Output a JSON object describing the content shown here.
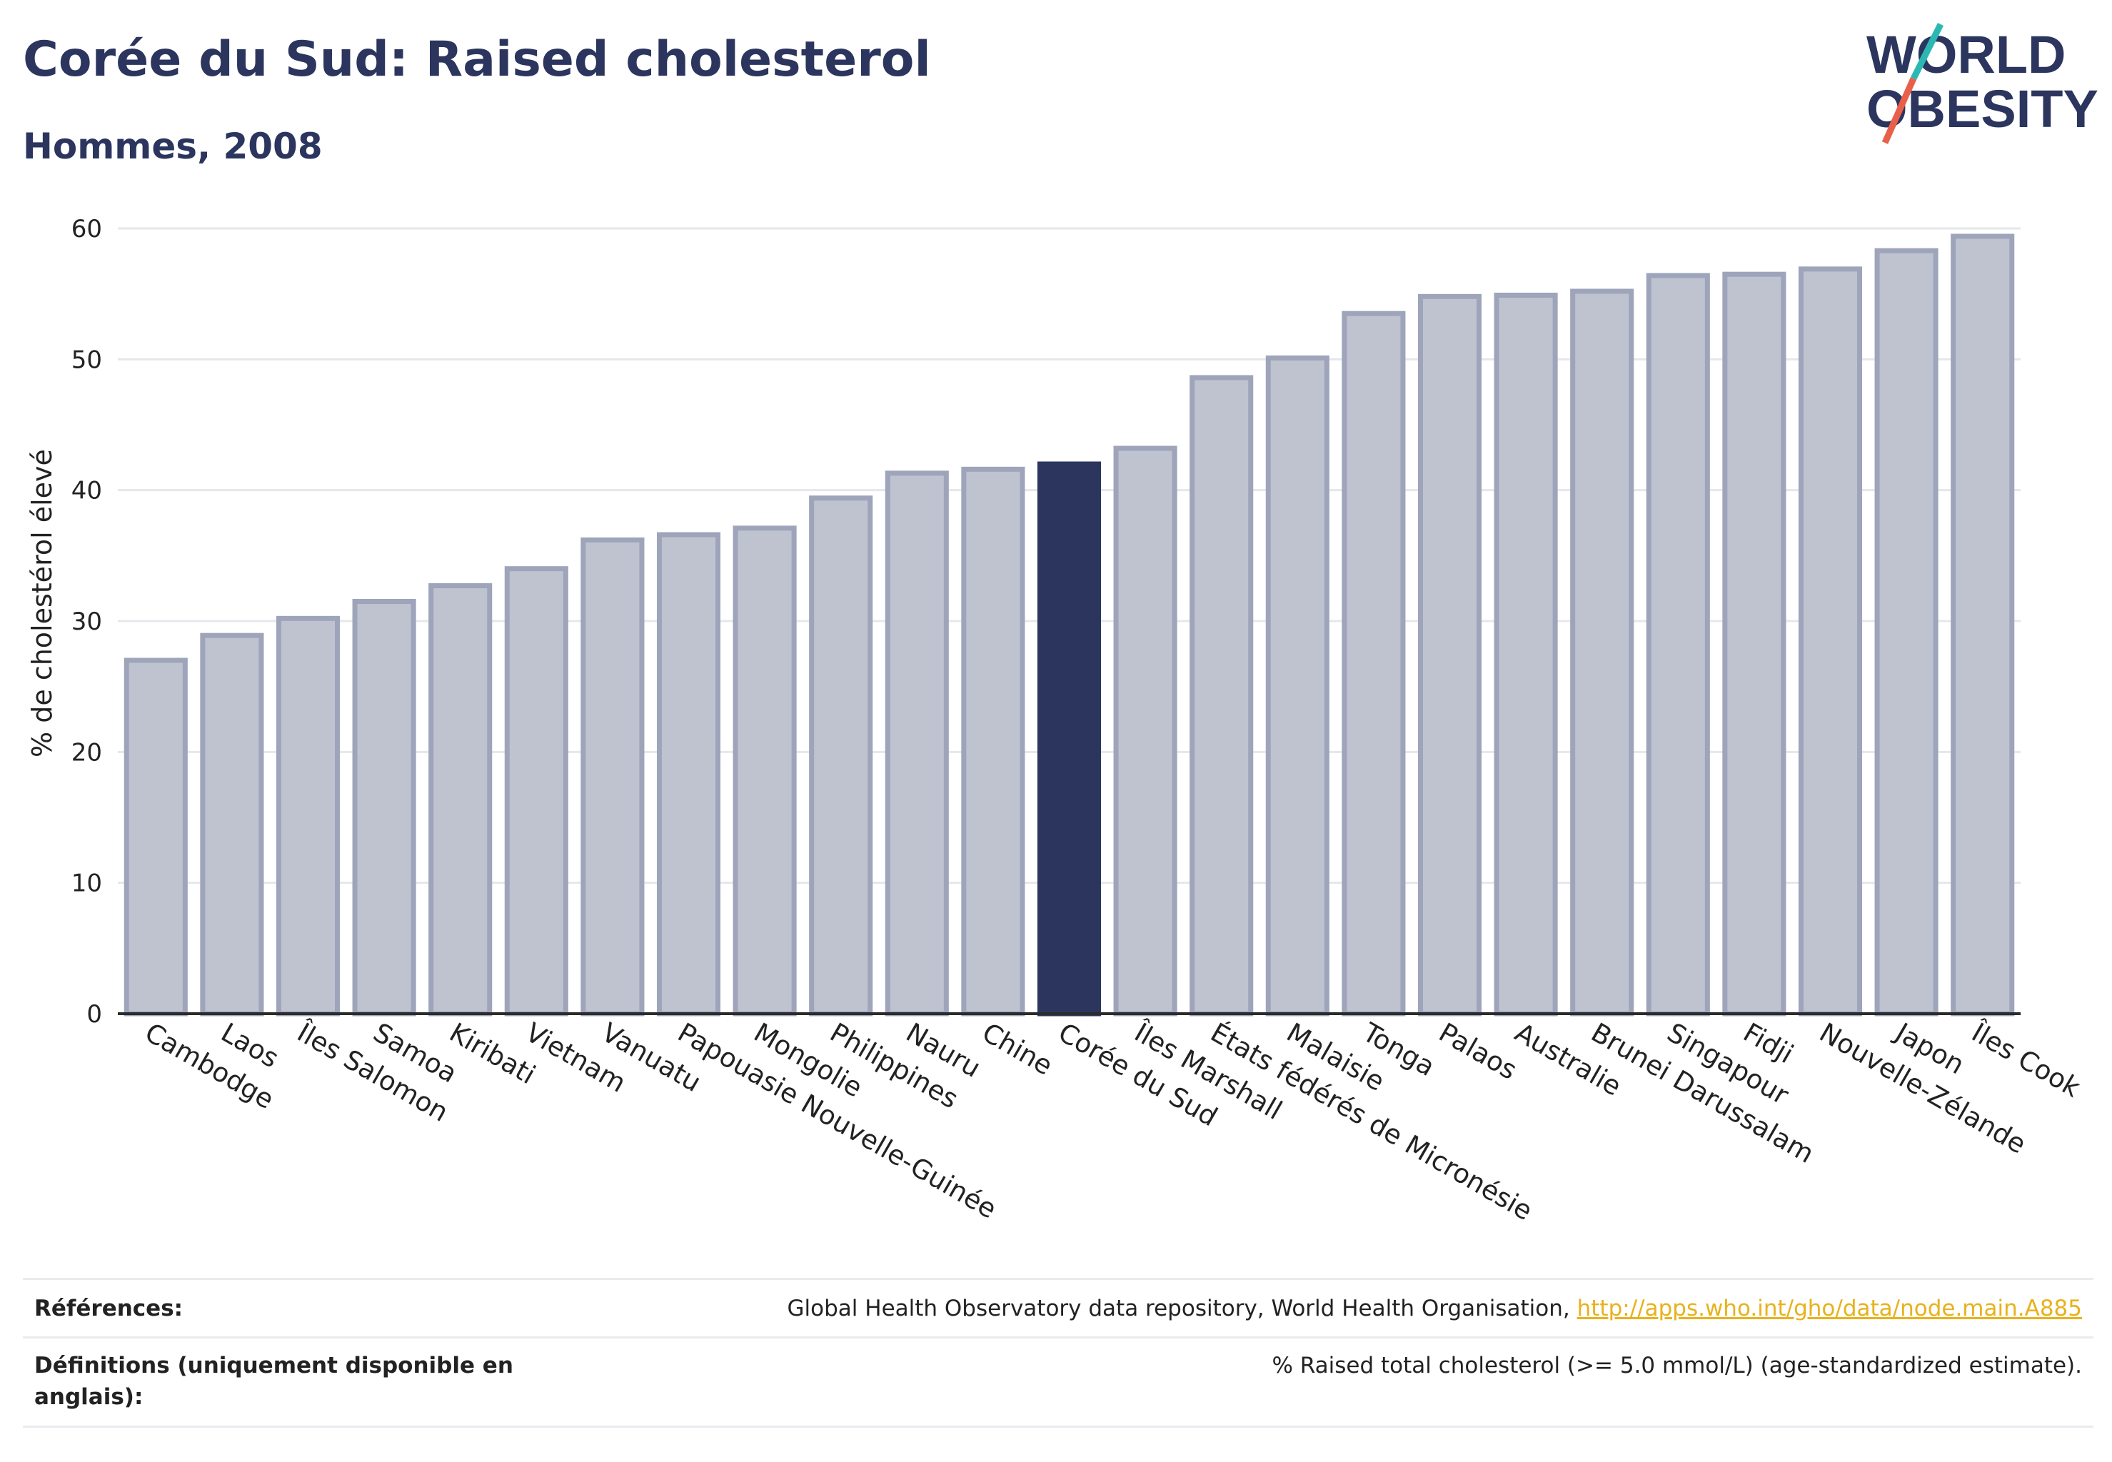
{
  "header": {
    "title": "Corée du Sud: Raised cholesterol",
    "subtitle": "Hommes, 2008"
  },
  "logo": {
    "line1": "WORLD",
    "line2": "OBESITY"
  },
  "chart_data": {
    "type": "bar",
    "ylabel": "% de cholestérol élevé",
    "xlabel": "",
    "ylim": [
      0,
      60
    ],
    "yticks": [
      0,
      10,
      20,
      30,
      40,
      50,
      60
    ],
    "grid": true,
    "highlight": "Corée du Sud",
    "categories": [
      "Cambodge",
      "Laos",
      "Îles Salomon",
      "Samoa",
      "Kiribati",
      "Vietnam",
      "Vanuatu",
      "Papouasie Nouvelle-Guinée",
      "Mongolie",
      "Philippines",
      "Nauru",
      "Chine",
      "Corée du Sud",
      "Îles Marshall",
      "États fédérés de Micronésie",
      "Malaisie",
      "Tonga",
      "Palaos",
      "Australie",
      "Brunei Darussalam",
      "Singapour",
      "Fidji",
      "Nouvelle-Zélande",
      "Japon",
      "Îles Cook"
    ],
    "values": [
      27.0,
      28.9,
      30.2,
      31.5,
      32.7,
      34.0,
      36.2,
      36.6,
      37.1,
      39.4,
      41.3,
      41.6,
      42.0,
      43.2,
      48.6,
      50.1,
      53.5,
      54.8,
      54.9,
      55.2,
      56.4,
      56.5,
      56.9,
      58.3,
      59.4
    ],
    "colors": {
      "bar": "#bfc3d0",
      "bar_border": "#9ea4ba",
      "highlight": "#2b355e",
      "grid": "#e6e7eb",
      "axis": "#2b2b2b"
    }
  },
  "footer": {
    "references_label": "Références:",
    "references_text": "Global Health Observatory data repository, World Health Organisation, ",
    "references_link": "http://apps.who.int/gho/data/node.main.A885",
    "definitions_label": "Définitions (uniquement disponible en anglais):",
    "definitions_text": "% Raised total cholesterol (>= 5.0 mmol/L) (age-standardized estimate)."
  }
}
